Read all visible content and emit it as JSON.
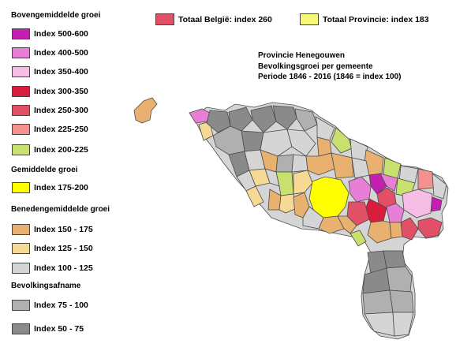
{
  "legend": {
    "sections": [
      {
        "title": "Bovengemiddelde groei",
        "items": [
          {
            "label": "Index 500-600",
            "color": "#c41fb0"
          },
          {
            "label": "Index 400-500",
            "color": "#e87fd6"
          },
          {
            "label": "Index 350-400",
            "color": "#f6bde6"
          },
          {
            "label": "Index 300-350",
            "color": "#d81e3c"
          },
          {
            "label": "Index 250-300",
            "color": "#e25068"
          },
          {
            "label": "Index 225-250",
            "color": "#f3918f"
          },
          {
            "label": "Index 200-225",
            "color": "#c7e06e"
          }
        ]
      },
      {
        "title": "Gemiddelde groei",
        "items": [
          {
            "label": "Index 175-200",
            "color": "#ffff00"
          }
        ]
      },
      {
        "title": "Benedengemiddelde groei",
        "items": [
          {
            "label": "Index 150 - 175",
            "color": "#e8b170"
          },
          {
            "label": "Index 125 - 150",
            "color": "#f6d994"
          },
          {
            "label": "Index 100 - 125",
            "color": "#d5d5d5"
          }
        ]
      },
      {
        "title": "Bevolkingsafname",
        "items": [
          {
            "label": "Index 75 - 100",
            "color": "#b0b0b0"
          },
          {
            "label": "Index 50 - 75",
            "color": "#8a8a8a"
          }
        ]
      }
    ]
  },
  "reference": {
    "belgium": {
      "label": "Totaal België: index 260",
      "color": "#e25068"
    },
    "province": {
      "label": "Totaal Provincie: index 183",
      "color": "#f7f77a"
    }
  },
  "title_lines": [
    "Provincie Henegouwen",
    "Bevolkingsgroei per gemeente",
    "Periode 1846 - 2016 (1846 = index 100)"
  ],
  "map": {
    "outline_color": "#4a4a4a",
    "province_fill": "#d5d5d5"
  }
}
